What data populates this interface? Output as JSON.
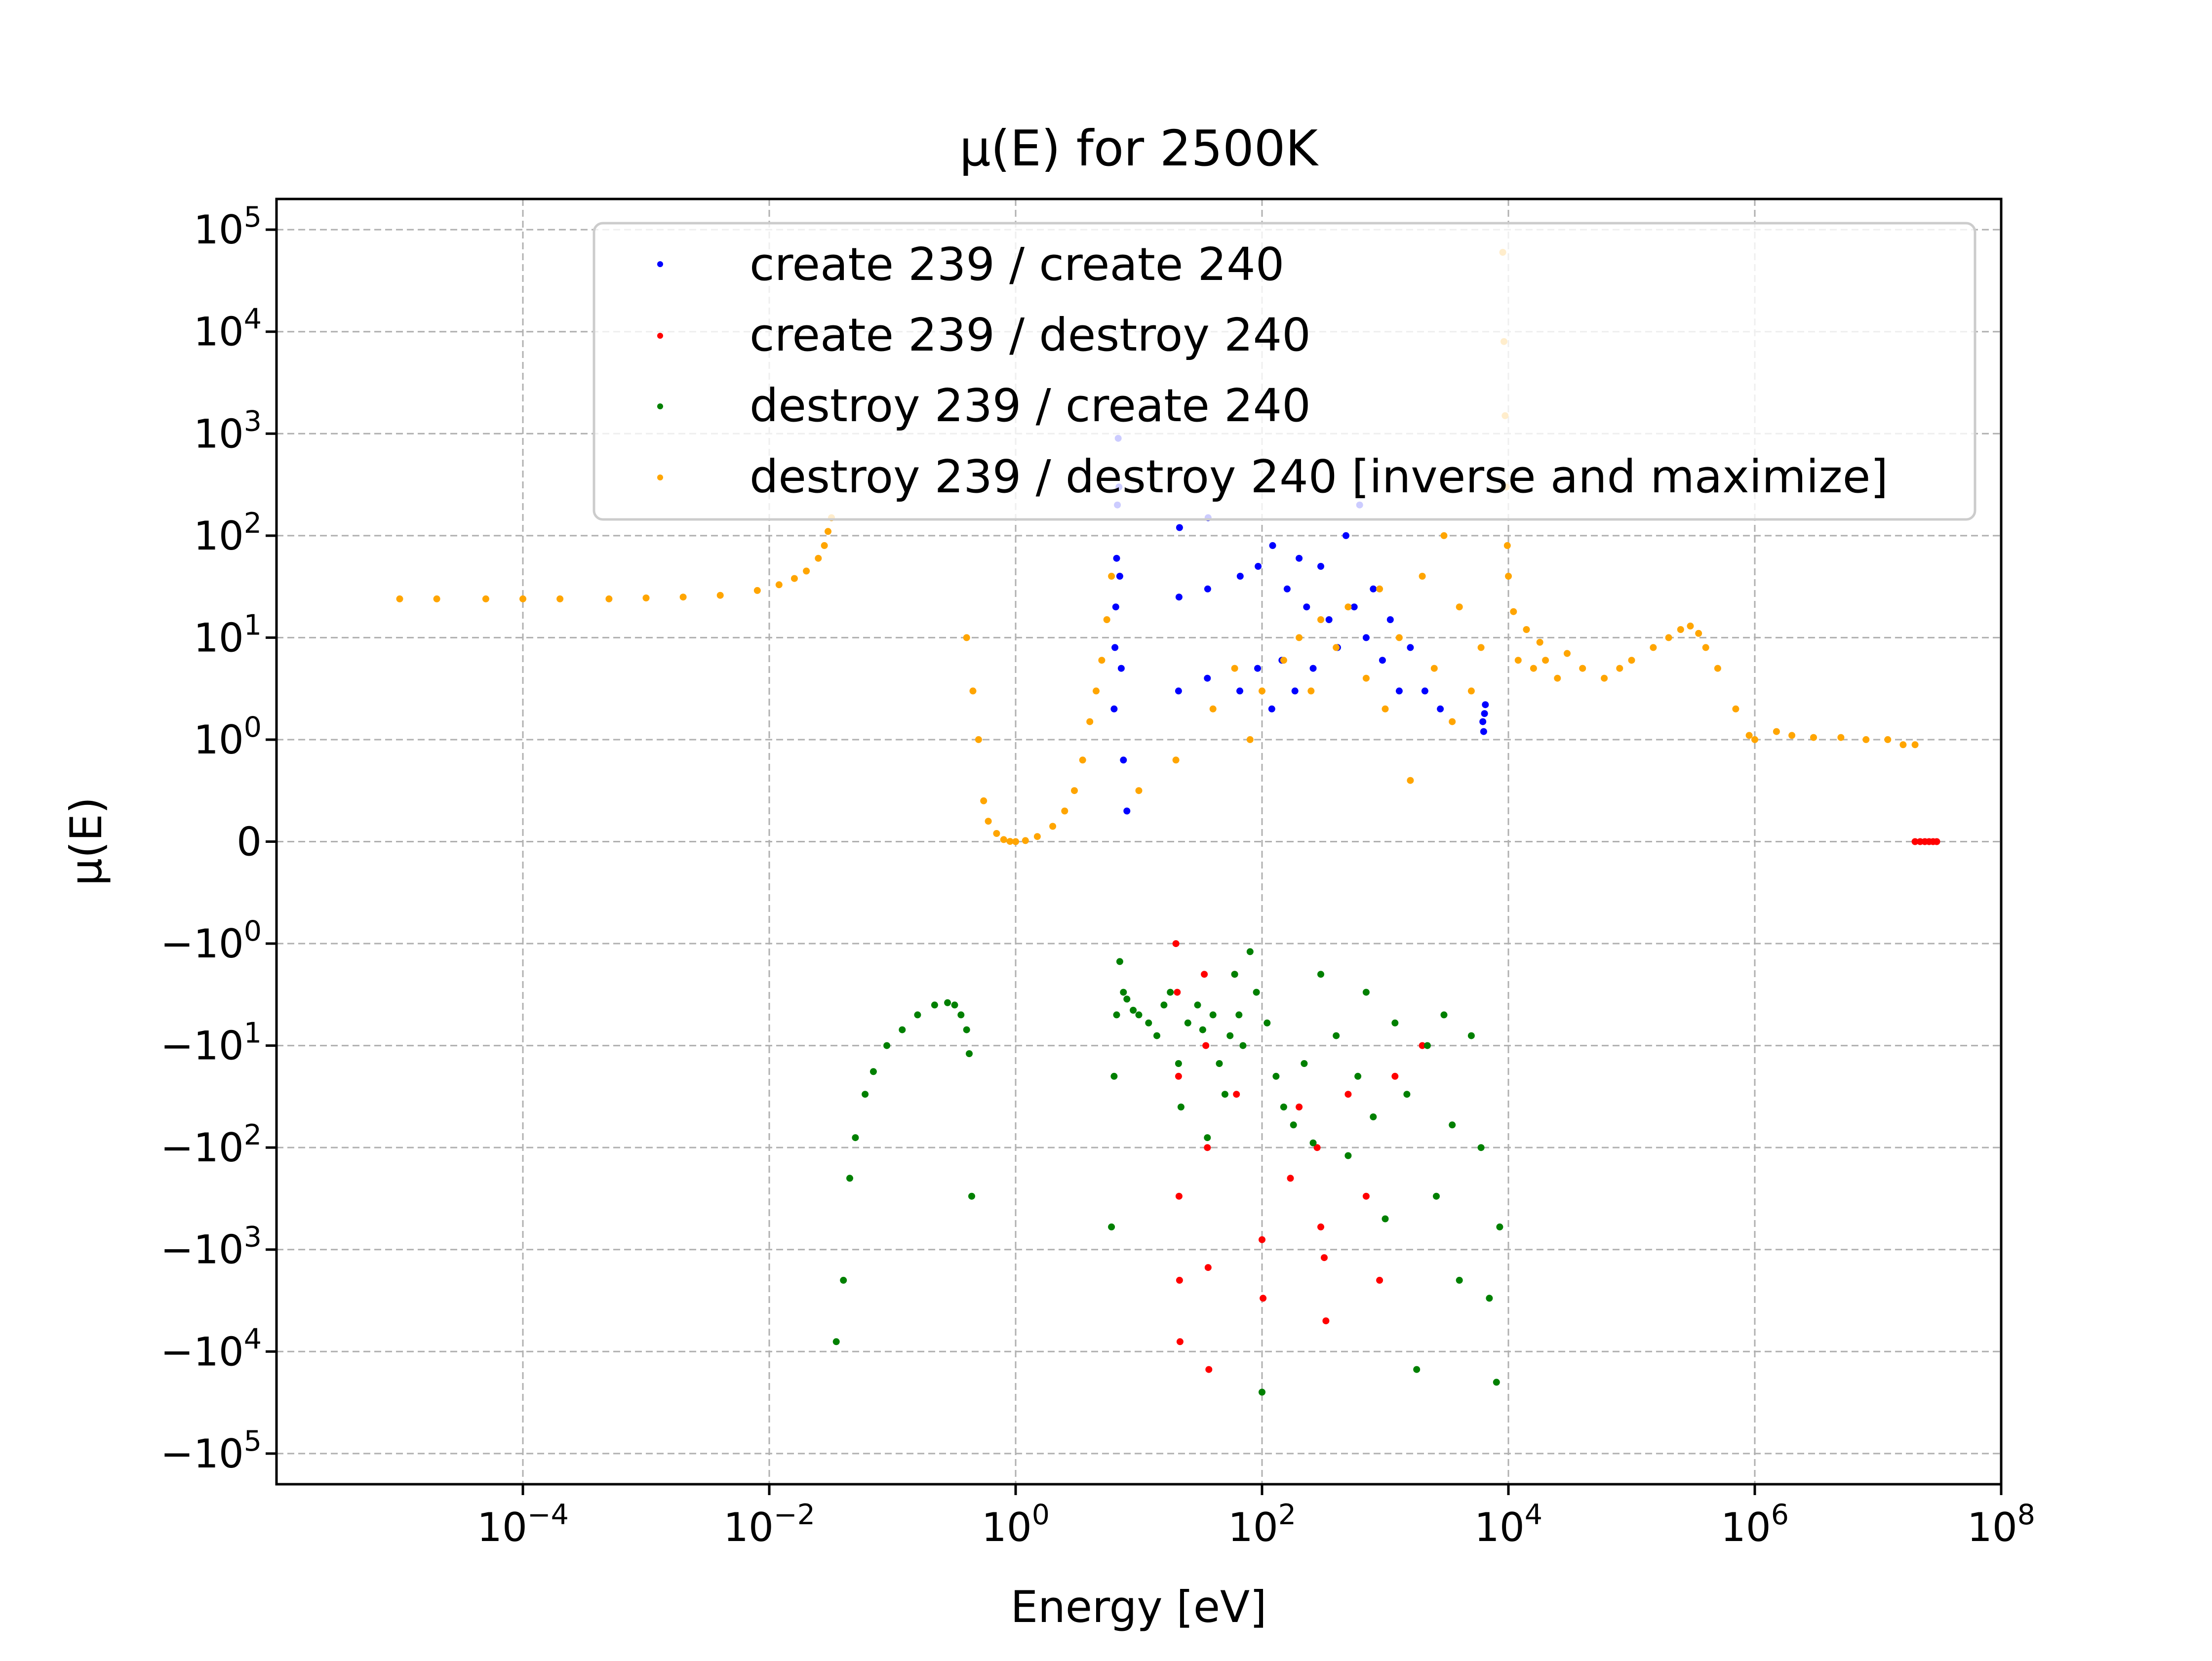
{
  "chart_data": {
    "type": "scatter",
    "title": "μ(E) for 2500K",
    "xlabel": "Energy [eV]",
    "ylabel": "μ(E)",
    "xscale": "log",
    "yscale": "symlog",
    "symlog_linthresh": 1,
    "xlim": [
      1e-06,
      100000000
    ],
    "ylim": [
      -200000,
      200000
    ],
    "grid": true,
    "legend_position": "top-right",
    "x_ticks": [
      {
        "base": "10",
        "exp": "−4",
        "value": 0.0001
      },
      {
        "base": "10",
        "exp": "−2",
        "value": 0.01
      },
      {
        "base": "10",
        "exp": "0",
        "value": 1
      },
      {
        "base": "10",
        "exp": "2",
        "value": 100
      },
      {
        "base": "10",
        "exp": "4",
        "value": 10000
      },
      {
        "base": "10",
        "exp": "6",
        "value": 1000000
      },
      {
        "base": "10",
        "exp": "8",
        "value": 100000000
      }
    ],
    "y_ticks": [
      {
        "base": "10",
        "exp": "5",
        "value": 100000
      },
      {
        "base": "10",
        "exp": "4",
        "value": 10000
      },
      {
        "base": "10",
        "exp": "3",
        "value": 1000
      },
      {
        "base": "10",
        "exp": "2",
        "value": 100
      },
      {
        "base": "10",
        "exp": "1",
        "value": 10
      },
      {
        "base": "10",
        "exp": "0",
        "value": 1
      },
      {
        "base": "0",
        "exp": "",
        "value": 0
      },
      {
        "base": "−10",
        "exp": "0",
        "value": -1
      },
      {
        "base": "−10",
        "exp": "1",
        "value": -10
      },
      {
        "base": "−10",
        "exp": "2",
        "value": -100
      },
      {
        "base": "−10",
        "exp": "3",
        "value": -1000
      },
      {
        "base": "−10",
        "exp": "4",
        "value": -10000
      },
      {
        "base": "−10",
        "exp": "5",
        "value": -100000
      }
    ],
    "series": [
      {
        "name": "create 239 / create 240",
        "color": "#0000ff",
        "points": [
          [
            6.3,
            2.0
          ],
          [
            6.4,
            8.0
          ],
          [
            6.5,
            20.0
          ],
          [
            6.6,
            60.0
          ],
          [
            6.7,
            200.0
          ],
          [
            6.8,
            900.0
          ],
          [
            6.9,
            300.0
          ],
          [
            7.0,
            40.0
          ],
          [
            7.2,
            5.0
          ],
          [
            7.5,
            0.8
          ],
          [
            8.0,
            0.3
          ],
          [
            21.0,
            3.0
          ],
          [
            21.2,
            25.0
          ],
          [
            21.4,
            120.0
          ],
          [
            36.0,
            4.0
          ],
          [
            36.2,
            30.0
          ],
          [
            36.5,
            150.0
          ],
          [
            66.0,
            3.0
          ],
          [
            66.5,
            40.0
          ],
          [
            92.0,
            5.0
          ],
          [
            93.0,
            50.0
          ],
          [
            120.0,
            2.0
          ],
          [
            122.0,
            80.0
          ],
          [
            145.0,
            6.0
          ],
          [
            160.0,
            30.0
          ],
          [
            185.0,
            3.0
          ],
          [
            200.0,
            60.0
          ],
          [
            230.0,
            20.0
          ],
          [
            260.0,
            5.0
          ],
          [
            300.0,
            50.0
          ],
          [
            350.0,
            15.0
          ],
          [
            410.0,
            8.0
          ],
          [
            480.0,
            100.0
          ],
          [
            560.0,
            20.0
          ],
          [
            620.0,
            200.0
          ],
          [
            700.0,
            10.0
          ],
          [
            800.0,
            30.0
          ],
          [
            950.0,
            6.0
          ],
          [
            1100.0,
            15.0
          ],
          [
            1300.0,
            3.0
          ],
          [
            1600.0,
            8.0
          ],
          [
            2100.0,
            3.0
          ],
          [
            2800.0,
            2.0
          ],
          [
            6200.0,
            1.5
          ],
          [
            6300.0,
            1.2
          ],
          [
            6400.0,
            1.8
          ],
          [
            6500.0,
            2.2
          ]
        ]
      },
      {
        "name": "create 239 / destroy 240",
        "color": "#ff0000",
        "points": [
          [
            20.0,
            -1.0
          ],
          [
            20.5,
            -3.0
          ],
          [
            21.0,
            -20.0
          ],
          [
            21.2,
            -300.0
          ],
          [
            21.4,
            -2000.0
          ],
          [
            21.6,
            -8000.0
          ],
          [
            34.0,
            -2.0
          ],
          [
            35.0,
            -10.0
          ],
          [
            36.0,
            -100.0
          ],
          [
            36.5,
            -1500.0
          ],
          [
            37.0,
            -15000.0
          ],
          [
            60.0,
            -2.0
          ],
          [
            62.0,
            -30.0
          ],
          [
            100.0,
            -800.0
          ],
          [
            102.0,
            -3000.0
          ],
          [
            170.0,
            -200.0
          ],
          [
            200.0,
            -40.0
          ],
          [
            280.0,
            -100.0
          ],
          [
            300.0,
            -600.0
          ],
          [
            320.0,
            -1200.0
          ],
          [
            330.0,
            -5000.0
          ],
          [
            500.0,
            -30.0
          ],
          [
            700.0,
            -300.0
          ],
          [
            900.0,
            -2000.0
          ],
          [
            1200.0,
            -20.0
          ],
          [
            2000.0,
            -10.0
          ],
          [
            20000000.0,
            0.0
          ],
          [
            22000000.0,
            0.0
          ],
          [
            24000000.0,
            0.0
          ],
          [
            26000000.0,
            0.0
          ],
          [
            28000000.0,
            0.0
          ],
          [
            30000000.0,
            0.0
          ]
        ]
      },
      {
        "name": "destroy 239 / create 240",
        "color": "#008000",
        "points": [
          [
            0.035,
            -8000.0
          ],
          [
            0.04,
            -2000.0
          ],
          [
            0.045,
            -200.0
          ],
          [
            0.05,
            -80.0
          ],
          [
            0.06,
            -30.0
          ],
          [
            0.07,
            -18.0
          ],
          [
            0.09,
            -10.0
          ],
          [
            0.12,
            -7.0
          ],
          [
            0.16,
            -5.0
          ],
          [
            0.22,
            -4.0
          ],
          [
            0.28,
            -3.8
          ],
          [
            0.32,
            -4.0
          ],
          [
            0.36,
            -5.0
          ],
          [
            0.4,
            -7.0
          ],
          [
            0.42,
            -12.0
          ],
          [
            0.44,
            -300.0
          ],
          [
            6.0,
            -600.0
          ],
          [
            6.3,
            -20.0
          ],
          [
            6.6,
            -5.0
          ],
          [
            7.0,
            -1.5
          ],
          [
            7.5,
            -3.0
          ],
          [
            8.0,
            -3.5
          ],
          [
            9.0,
            -4.5
          ],
          [
            10.0,
            -5.0
          ],
          [
            12.0,
            -6.0
          ],
          [
            14.0,
            -8.0
          ],
          [
            16.0,
            -4.0
          ],
          [
            18.0,
            -3.0
          ],
          [
            21.0,
            -15.0
          ],
          [
            22.0,
            -40.0
          ],
          [
            25.0,
            -6.0
          ],
          [
            30.0,
            -4.0
          ],
          [
            33.0,
            -7.0
          ],
          [
            36.0,
            -80.0
          ],
          [
            40.0,
            -5.0
          ],
          [
            45.0,
            -15.0
          ],
          [
            50.0,
            -30.0
          ],
          [
            55.0,
            -8.0
          ],
          [
            60.0,
            -2.0
          ],
          [
            65.0,
            -5.0
          ],
          [
            70.0,
            -10.0
          ],
          [
            80.0,
            -1.2
          ],
          [
            90.0,
            -3.0
          ],
          [
            100.0,
            -25000.0
          ],
          [
            110.0,
            -6.0
          ],
          [
            130.0,
            -20.0
          ],
          [
            150.0,
            -40.0
          ],
          [
            180.0,
            -60.0
          ],
          [
            220.0,
            -15.0
          ],
          [
            260.0,
            -90.0
          ],
          [
            300.0,
            -2.0
          ],
          [
            400.0,
            -8.0
          ],
          [
            500.0,
            -120.0
          ],
          [
            600.0,
            -20.0
          ],
          [
            700.0,
            -3.0
          ],
          [
            800.0,
            -50.0
          ],
          [
            1000.0,
            -500.0
          ],
          [
            1200.0,
            -6.0
          ],
          [
            1500.0,
            -30.0
          ],
          [
            1800.0,
            -15000.0
          ],
          [
            2200.0,
            -10.0
          ],
          [
            2600.0,
            -300.0
          ],
          [
            3000.0,
            -5.0
          ],
          [
            3500.0,
            -60.0
          ],
          [
            4000.0,
            -2000.0
          ],
          [
            5000.0,
            -8.0
          ],
          [
            6000.0,
            -100.0
          ],
          [
            7000.0,
            -3000.0
          ],
          [
            8000.0,
            -20000.0
          ],
          [
            8500.0,
            -600.0
          ]
        ]
      },
      {
        "name": "destroy 239 / destroy 240 [inverse and maximize]",
        "color": "#ffa500",
        "points": [
          [
            1e-05,
            24.0
          ],
          [
            2e-05,
            24.0
          ],
          [
            5e-05,
            24.0
          ],
          [
            0.0001,
            24.0
          ],
          [
            0.0002,
            24.0
          ],
          [
            0.0005,
            24.0
          ],
          [
            0.001,
            24.5
          ],
          [
            0.002,
            25.0
          ],
          [
            0.004,
            26.0
          ],
          [
            0.008,
            29.0
          ],
          [
            0.012,
            33.0
          ],
          [
            0.016,
            38.0
          ],
          [
            0.02,
            45.0
          ],
          [
            0.025,
            60.0
          ],
          [
            0.028,
            80.0
          ],
          [
            0.03,
            110.0
          ],
          [
            0.032,
            150.0
          ],
          [
            0.4,
            10.0
          ],
          [
            0.45,
            3.0
          ],
          [
            0.5,
            1.0
          ],
          [
            0.55,
            0.4
          ],
          [
            0.6,
            0.2
          ],
          [
            0.7,
            0.08
          ],
          [
            0.8,
            0.02
          ],
          [
            0.9,
            0.002
          ],
          [
            1.0,
            0.0
          ],
          [
            1.2,
            0.01
          ],
          [
            1.5,
            0.05
          ],
          [
            2.0,
            0.15
          ],
          [
            2.5,
            0.3
          ],
          [
            3.0,
            0.5
          ],
          [
            3.5,
            0.8
          ],
          [
            4.0,
            1.5
          ],
          [
            4.5,
            3.0
          ],
          [
            5.0,
            6.0
          ],
          [
            5.5,
            15.0
          ],
          [
            6.0,
            40.0
          ],
          [
            10.0,
            0.5
          ],
          [
            20.0,
            0.8
          ],
          [
            40.0,
            2.0
          ],
          [
            60.0,
            5.0
          ],
          [
            80.0,
            1.0
          ],
          [
            100.0,
            3.0
          ],
          [
            150.0,
            6.0
          ],
          [
            200.0,
            10.0
          ],
          [
            250.0,
            3.0
          ],
          [
            300.0,
            15.0
          ],
          [
            400.0,
            8.0
          ],
          [
            500.0,
            20.0
          ],
          [
            700.0,
            4.0
          ],
          [
            900.0,
            30.0
          ],
          [
            1000.0,
            2.0
          ],
          [
            1300.0,
            10.0
          ],
          [
            1600.0,
            0.6
          ],
          [
            2000.0,
            40.0
          ],
          [
            2500.0,
            5.0
          ],
          [
            3000.0,
            100.0
          ],
          [
            3500.0,
            1.5
          ],
          [
            4000.0,
            20.0
          ],
          [
            5000.0,
            3.0
          ],
          [
            6000.0,
            8.0
          ],
          [
            9000.0,
            60000.0
          ],
          [
            9200.0,
            8000.0
          ],
          [
            9400.0,
            1500.0
          ],
          [
            9600.0,
            300.0
          ],
          [
            9800.0,
            80.0
          ],
          [
            10000.0,
            40.0
          ],
          [
            11000.0,
            18.0
          ],
          [
            12000.0,
            6.0
          ],
          [
            14000.0,
            12.0
          ],
          [
            16000.0,
            5.0
          ],
          [
            18000.0,
            9.0
          ],
          [
            20000.0,
            6.0
          ],
          [
            25000.0,
            4.0
          ],
          [
            30000.0,
            7.0
          ],
          [
            40000.0,
            5.0
          ],
          [
            60000.0,
            4.0
          ],
          [
            80000.0,
            5.0
          ],
          [
            100000.0,
            6.0
          ],
          [
            150000.0,
            8.0
          ],
          [
            200000.0,
            10.0
          ],
          [
            250000.0,
            12.0
          ],
          [
            300000.0,
            13.0
          ],
          [
            350000.0,
            11.0
          ],
          [
            400000.0,
            8.0
          ],
          [
            500000.0,
            5.0
          ],
          [
            700000.0,
            2.0
          ],
          [
            900000.0,
            1.1
          ],
          [
            1000000.0,
            1.0
          ],
          [
            1500000.0,
            1.2
          ],
          [
            2000000.0,
            1.1
          ],
          [
            3000000.0,
            1.05
          ],
          [
            5000000.0,
            1.05
          ],
          [
            8000000.0,
            1.0
          ],
          [
            12000000.0,
            1.0
          ],
          [
            16000000.0,
            0.95
          ],
          [
            20000000.0,
            0.95
          ]
        ]
      }
    ]
  }
}
